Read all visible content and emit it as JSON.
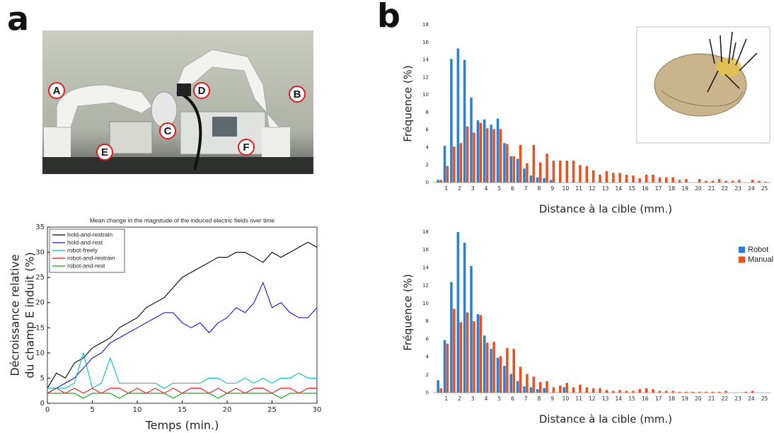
{
  "panel_labels": [
    "a",
    "b"
  ],
  "photo": {
    "labels": [
      "A",
      "B",
      "C",
      "D",
      "E",
      "F"
    ]
  },
  "chart_data": [
    {
      "type": "line",
      "title": "Mean change in the magnitude of the induced electric fields over time",
      "xlabel": "Temps (min.)",
      "ylabel": [
        "Décroissance relative",
        "du champ E induit (%)"
      ],
      "x": [
        0,
        1,
        2,
        3,
        4,
        5,
        6,
        7,
        8,
        9,
        10,
        11,
        12,
        13,
        14,
        15,
        16,
        17,
        18,
        19,
        20,
        21,
        22,
        23,
        24,
        25,
        26,
        27,
        28,
        29,
        30
      ],
      "xlim": [
        0,
        30
      ],
      "xticks": [
        0,
        5,
        10,
        15,
        20,
        25,
        30
      ],
      "ylim": [
        0,
        35
      ],
      "yticks": [
        0,
        5,
        10,
        15,
        20,
        25,
        30,
        35
      ],
      "grid": false,
      "legend": "upper left",
      "series": [
        {
          "name": "hold-and-restrain",
          "color": "#000000",
          "values": [
            3,
            6,
            5,
            8,
            9,
            11,
            12,
            13,
            15,
            16,
            17,
            19,
            20,
            21,
            23,
            25,
            26,
            27,
            28,
            29,
            29,
            30,
            30,
            29,
            28,
            30,
            29,
            30,
            31,
            32,
            31
          ]
        },
        {
          "name": "hold-and-rest",
          "color": "#1010e0",
          "values": [
            2,
            3,
            4,
            5,
            7,
            9,
            10,
            12,
            13,
            14,
            15,
            16,
            17,
            18,
            18,
            16,
            15,
            16,
            14,
            16,
            17,
            19,
            18,
            20,
            24,
            19,
            20,
            18,
            17,
            17,
            19
          ]
        },
        {
          "name": "robot-freely",
          "color": "#00bfbf",
          "values": [
            3,
            3,
            3,
            4,
            10,
            3,
            4,
            9,
            4,
            4,
            4,
            4,
            4,
            3,
            4,
            4,
            4,
            4,
            5,
            5,
            4,
            4,
            5,
            4,
            5,
            4,
            5,
            5,
            6,
            5,
            5
          ]
        },
        {
          "name": "robot-and-restrain",
          "color": "#ff0000",
          "values": [
            2,
            3,
            2,
            3,
            2,
            3,
            2,
            3,
            3,
            2,
            3,
            2,
            3,
            2,
            3,
            2,
            3,
            3,
            2,
            3,
            2,
            3,
            2,
            3,
            3,
            2,
            3,
            3,
            2,
            3,
            3
          ]
        },
        {
          "name": "robot-and-rest",
          "color": "#00a000",
          "values": [
            2,
            2,
            2,
            2,
            1,
            2,
            2,
            2,
            1,
            2,
            2,
            2,
            2,
            2,
            1,
            2,
            2,
            2,
            2,
            1,
            2,
            2,
            2,
            2,
            2,
            2,
            1,
            2,
            2,
            2,
            2
          ]
        }
      ]
    },
    {
      "type": "bar",
      "xlabel": "Distance à la cible (mm.)",
      "ylabel": "Fréquence (%)",
      "x": [
        0.5,
        1,
        1.5,
        2,
        2.5,
        3,
        3.5,
        4,
        4.5,
        5,
        5.5,
        6,
        6.5,
        7,
        7.5,
        8,
        8.5,
        9,
        9.5,
        10,
        10.5,
        11,
        11.5,
        12,
        12.5,
        13,
        13.5,
        14,
        14.5,
        15,
        15.5,
        16,
        16.5,
        17,
        17.5,
        18,
        18.5,
        19,
        19.5,
        20,
        20.5,
        21,
        21.5,
        22,
        22.5,
        23,
        23.5,
        24,
        24.5,
        25
      ],
      "xlim": [
        0,
        25.5
      ],
      "xticks": [
        1,
        2,
        3,
        4,
        5,
        6,
        7,
        8,
        9,
        10,
        11,
        12,
        13,
        14,
        15,
        16,
        17,
        18,
        19,
        20,
        21,
        22,
        23,
        24,
        25
      ],
      "ylim": [
        0,
        18
      ],
      "yticks": [
        0,
        2,
        4,
        6,
        8,
        10,
        12,
        14,
        16,
        18
      ],
      "grid": false,
      "series": [
        {
          "color": "#2a7fd4",
          "values": [
            0.3,
            4.2,
            14.1,
            15.3,
            14,
            9.7,
            7.1,
            7.2,
            6.6,
            7.3,
            4.5,
            3,
            2.7,
            1.6,
            0.8,
            0.6,
            0.5,
            0.3,
            0,
            0,
            0,
            0,
            0,
            0,
            0,
            0,
            0,
            0,
            0,
            0,
            0,
            0,
            0,
            0,
            0,
            0,
            0,
            0,
            0,
            0,
            0,
            0,
            0,
            0,
            0,
            0,
            0,
            0,
            0,
            0
          ]
        },
        {
          "color": "#ec4f1c",
          "values": [
            0.3,
            1.9,
            4.1,
            4.5,
            6.4,
            5.7,
            6.8,
            6.2,
            6.1,
            6.1,
            4.4,
            3,
            4.3,
            2.2,
            4.3,
            2.3,
            3.3,
            2.5,
            2.5,
            2.5,
            2.5,
            2,
            1.9,
            1.4,
            0.9,
            1.3,
            1.1,
            1.1,
            0.9,
            0.8,
            0.5,
            0.9,
            0.9,
            0.6,
            0.6,
            0.6,
            0.3,
            0.4,
            0,
            0.4,
            0.2,
            0.2,
            0.4,
            0.2,
            0.2,
            0.3,
            0,
            0.3,
            0.2,
            0.1
          ]
        }
      ]
    },
    {
      "type": "bar",
      "xlabel": "Distance à la cible (mm.)",
      "ylabel": "Fréquence (%)",
      "x": [
        0.5,
        1,
        1.5,
        2,
        2.5,
        3,
        3.5,
        4,
        4.5,
        5,
        5.5,
        6,
        6.5,
        7,
        7.5,
        8,
        8.5,
        9,
        9.5,
        10,
        10.5,
        11,
        11.5,
        12,
        12.5,
        13,
        13.5,
        14,
        14.5,
        15,
        15.5,
        16,
        16.5,
        17,
        17.5,
        18,
        18.5,
        19,
        19.5,
        20,
        20.5,
        21,
        21.5,
        22,
        22.5,
        23,
        23.5,
        24,
        24.5,
        25
      ],
      "xlim": [
        0,
        25.5
      ],
      "xticks": [
        1,
        2,
        3,
        4,
        5,
        6,
        7,
        8,
        9,
        10,
        11,
        12,
        13,
        14,
        15,
        16,
        17,
        18,
        19,
        20,
        21,
        22,
        23,
        24,
        25
      ],
      "ylim": [
        0,
        18
      ],
      "yticks": [
        0,
        2,
        4,
        6,
        8,
        10,
        12,
        14,
        16,
        18
      ],
      "grid": false,
      "legend": "right",
      "series": [
        {
          "name": "Robot",
          "color": "#2a7fd4",
          "values": [
            1.4,
            5.9,
            12.4,
            18,
            16.8,
            14.2,
            8.8,
            6.4,
            4.9,
            3.9,
            3,
            2.1,
            1.3,
            0.7,
            0.6,
            0.4,
            0.5,
            0,
            0,
            0.6,
            0,
            0,
            0,
            0,
            0,
            0,
            0,
            0,
            0,
            0,
            0,
            0,
            0,
            0,
            0,
            0,
            0,
            0,
            0,
            0,
            0,
            0,
            0,
            0,
            0,
            0,
            0,
            0,
            0,
            0
          ]
        },
        {
          "name": "Manual",
          "color": "#ec4f1c",
          "values": [
            0.5,
            5.5,
            9.4,
            7.9,
            9,
            8,
            8.7,
            5.6,
            5.7,
            4.1,
            5,
            4.9,
            2.9,
            2.1,
            1.8,
            1.2,
            1.3,
            0.6,
            0.8,
            1.1,
            0.6,
            0.9,
            0.6,
            0.5,
            0.5,
            0.3,
            0.2,
            0.3,
            0.2,
            0.2,
            0.4,
            0.5,
            0.4,
            0.2,
            0.2,
            0.2,
            0.1,
            0.1,
            0.1,
            0.1,
            0.1,
            0.1,
            0.1,
            0.2,
            0,
            0,
            0.1,
            0.2,
            0,
            0
          ]
        }
      ]
    }
  ]
}
